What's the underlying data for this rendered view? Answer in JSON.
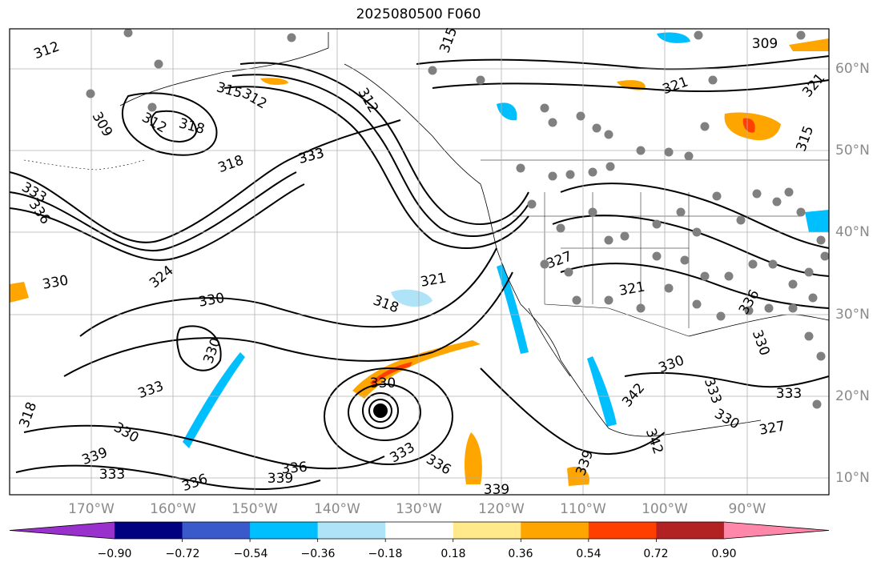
{
  "title": "2025080500 F060",
  "lat_labels": [
    "60°N",
    "50°N",
    "40°N",
    "30°N",
    "20°N",
    "10°N"
  ],
  "lon_labels": [
    "170°W",
    "160°W",
    "150°W",
    "140°W",
    "130°W",
    "120°W",
    "110°W",
    "100°W",
    "90°W"
  ],
  "contour_labels": [
    "312",
    "315",
    "309",
    "312",
    "318",
    "309",
    "315",
    "312",
    "333",
    "333",
    "336",
    "318",
    "312",
    "333",
    "321",
    "330",
    "327",
    "321",
    "324",
    "330",
    "318",
    "321",
    "336",
    "330",
    "333",
    "318",
    "330",
    "336",
    "333",
    "339",
    "336",
    "333",
    "330",
    "336",
    "339",
    "339",
    "330",
    "330",
    "333",
    "342",
    "342",
    "339",
    "333",
    "327",
    "330",
    "321",
    "315"
  ],
  "colorbar": {
    "tick_labels": [
      "−0.90",
      "−0.72",
      "−0.54",
      "−0.36",
      "−0.18",
      "0.18",
      "0.36",
      "0.54",
      "0.72",
      "0.90"
    ],
    "colors": {
      "below_min": "#9932cc",
      "c1": "#000080",
      "c2": "#3a5acb",
      "c3": "#00bfff",
      "c4": "#aee3f8",
      "c5": "#ffffff",
      "c6": "#ffe98a",
      "c7": "#ffa500",
      "c8": "#ff3f00",
      "c9": "#b22222",
      "above_max": "#ff88aa"
    }
  },
  "colors": {
    "contour": "#000000",
    "grid": "#b0b0b0",
    "station": "#808080",
    "coast": "#000000"
  }
}
